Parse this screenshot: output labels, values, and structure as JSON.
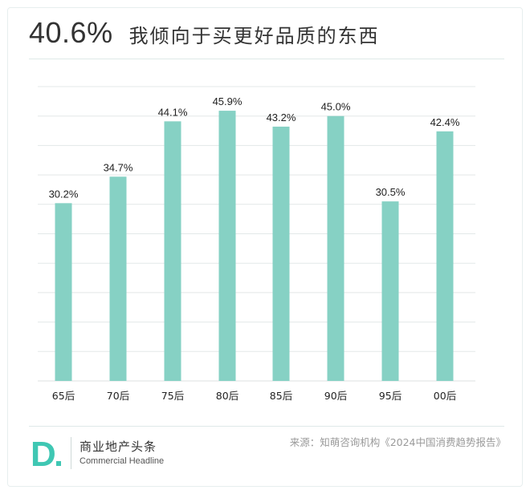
{
  "header": {
    "headline_value": "40.6%",
    "headline_text": "我倾向于买更好品质的东西"
  },
  "chart_data": {
    "type": "bar",
    "categories": [
      "65后",
      "70后",
      "75后",
      "80后",
      "85后",
      "90后",
      "95后",
      "00后"
    ],
    "values": [
      30.2,
      34.7,
      44.1,
      45.9,
      43.2,
      45.0,
      30.5,
      42.4
    ],
    "value_labels": [
      "30.2%",
      "34.7%",
      "44.1%",
      "45.9%",
      "43.2%",
      "45.0%",
      "30.5%",
      "42.4%"
    ],
    "unit": "%",
    "ylim": [
      0,
      50
    ],
    "grid": true,
    "bar_color": "#86d1c4",
    "grid_color": "#e3e8e8"
  },
  "footer": {
    "logo_letter": "D",
    "logo_cn": "商业地产头条",
    "logo_en": "Commercial Headline",
    "logo_color": "#3fc7b3",
    "source": "来源：知萌咨询机构《2024中国消费趋势报告》"
  }
}
